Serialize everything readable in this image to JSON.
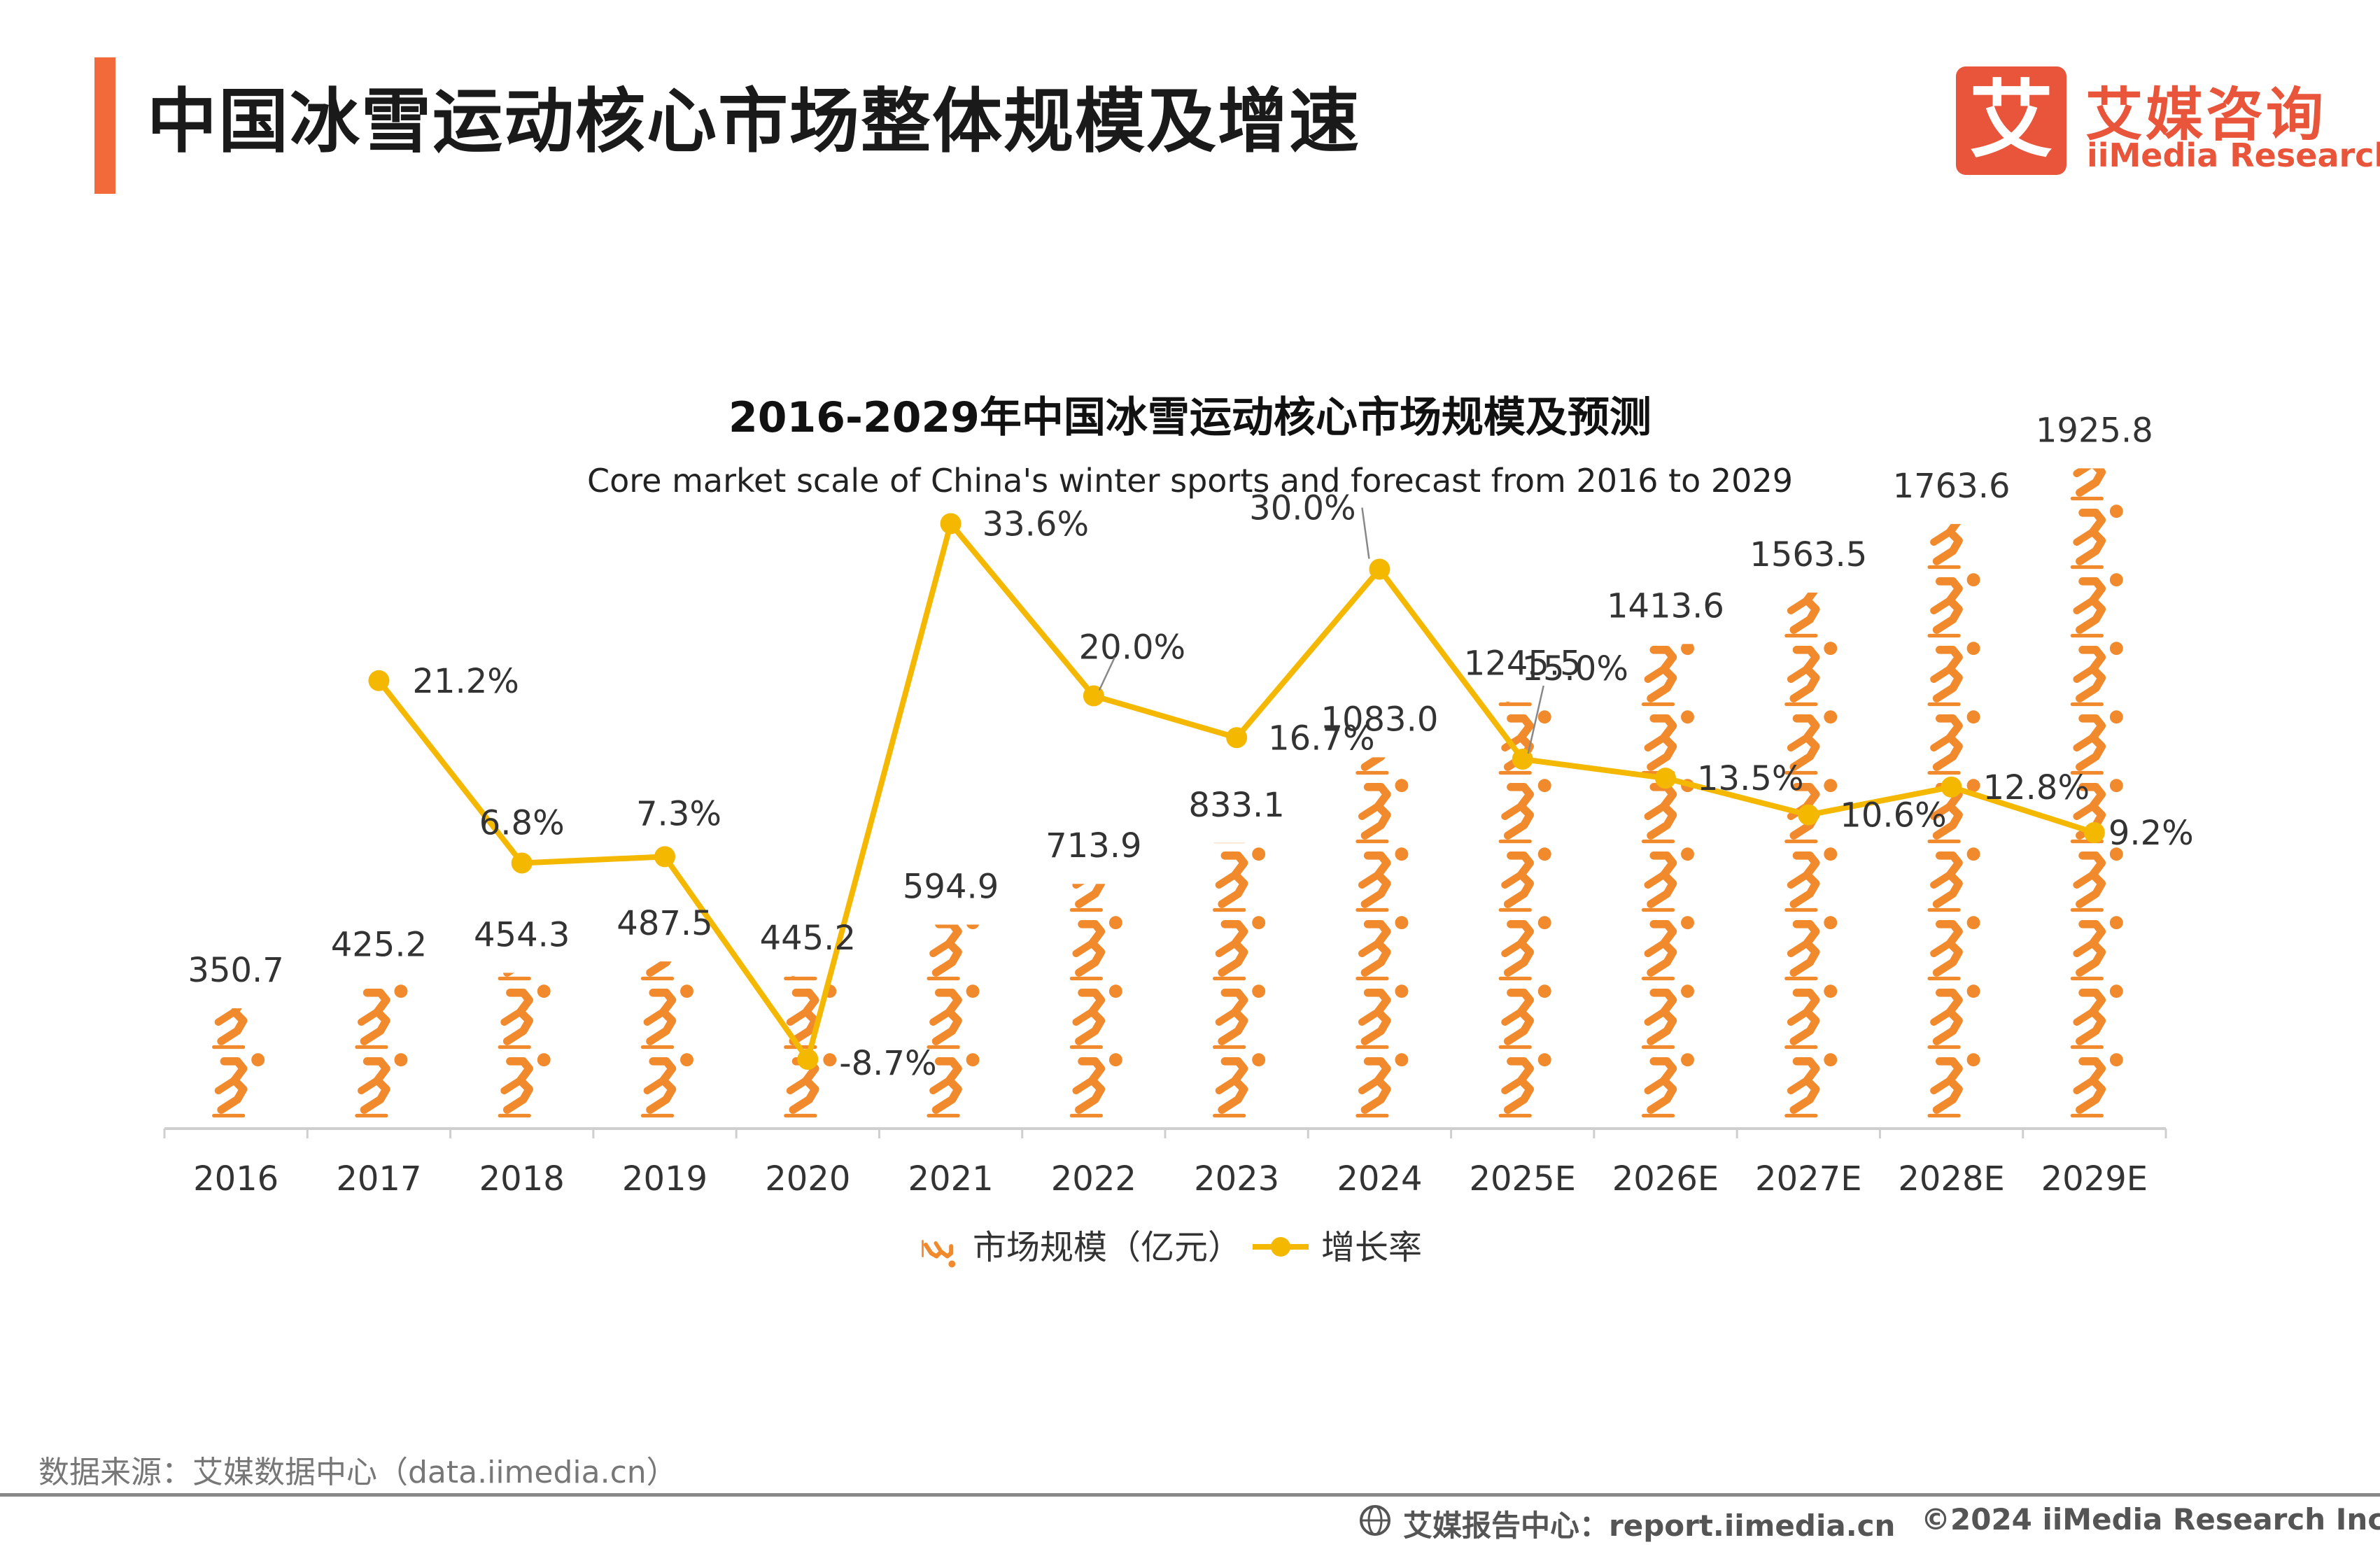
{
  "header": {
    "title": "中国冰雪运动核心市场整体规模及增速"
  },
  "brand": {
    "mark": "艾",
    "name_cn": "艾媒咨询",
    "name_en": "iiMedia Research",
    "color": "#E8553A"
  },
  "chart_data": {
    "type": "bar+line",
    "title": "2016-2029年中国冰雪运动核心市场规模及预测",
    "subtitle": "Core market scale of China's winter sports and forecast from 2016 to 2029",
    "categories": [
      "2016",
      "2017",
      "2018",
      "2019",
      "2020",
      "2021",
      "2022",
      "2023",
      "2024",
      "2025E",
      "2026E",
      "2027E",
      "2028E",
      "2029E"
    ],
    "series": [
      {
        "name": "市场规模（亿元）",
        "kind": "pictorial-bar",
        "icon": "skater-icon",
        "color": "#F08A2C",
        "values": [
          350.7,
          425.2,
          454.3,
          487.5,
          445.2,
          594.9,
          713.9,
          833.1,
          1083.0,
          1245.5,
          1413.6,
          1563.5,
          1763.6,
          1925.8
        ],
        "labels": [
          "350.7",
          "425.2",
          "454.3",
          "487.5",
          "445.2",
          "594.9",
          "713.9",
          "833.1",
          "1083.0",
          "1245.5",
          "1413.6",
          "1563.5",
          "1763.6",
          "1925.8"
        ]
      },
      {
        "name": "增长率",
        "kind": "line",
        "color": "#F5B800",
        "values": [
          null,
          21.2,
          6.8,
          7.3,
          -8.7,
          33.6,
          20.0,
          16.7,
          30.0,
          15.0,
          13.5,
          10.6,
          12.8,
          9.2
        ],
        "labels": [
          "",
          "21.2%",
          "6.8%",
          "7.3%",
          "-8.7%",
          "33.6%",
          "20.0%",
          "16.7%",
          "30.0%",
          "15.0%",
          "13.5%",
          "10.6%",
          "12.8%",
          "9.2%"
        ]
      }
    ],
    "icon_unit_value": 200,
    "legend_position": "bottom-center"
  },
  "footer": {
    "source": "数据来源：艾媒数据中心（data.iimedia.cn）",
    "report": "艾媒报告中心：report.iimedia.cn",
    "copyright": "©2024  iiMedia Research  Inc"
  }
}
